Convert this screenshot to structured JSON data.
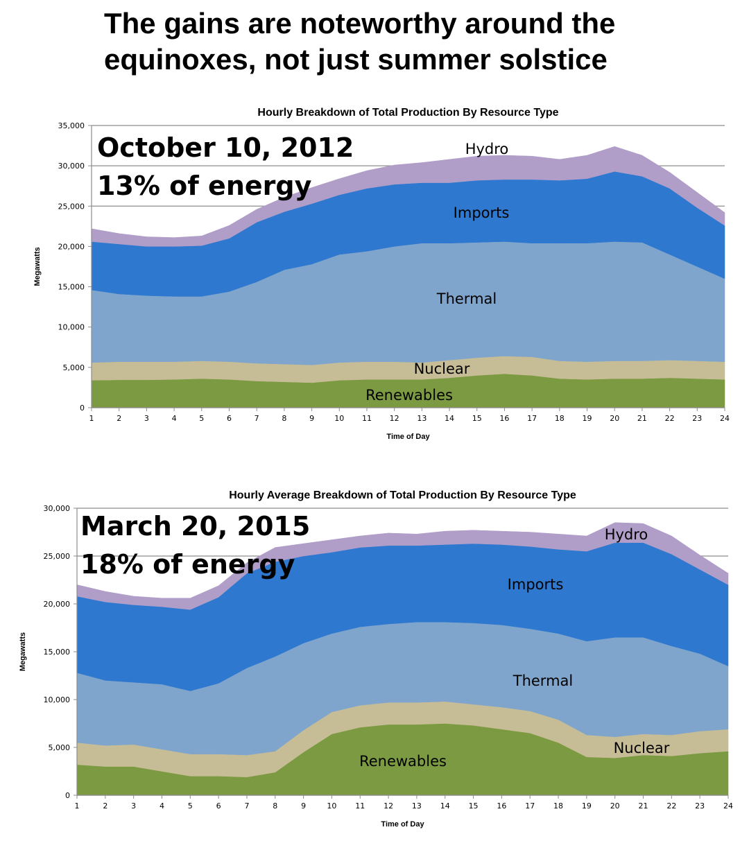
{
  "slide_title": {
    "line1": "The gains are noteworthy around the",
    "line2": "equinoxes, not just summer solstice"
  },
  "colors": {
    "Renewables": "#7b9a41",
    "Nuclear": "#c6bd96",
    "Thermal": "#80a5cc",
    "Imports": "#2e79cf",
    "Hydro": "#b09ec8"
  },
  "chart_data": [
    {
      "type": "area",
      "stacked": true,
      "title": "Hourly Breakdown of Total Production By Resource Type",
      "annotation": {
        "date": "October 10, 2012",
        "share": "13% of energy"
      },
      "xlabel": "Time of Day",
      "ylabel": "Megawatts",
      "ylim": [
        0,
        35000
      ],
      "yticks": [
        "0",
        "5,000",
        "10,000",
        "15,000",
        "20,000",
        "25,000",
        "30,000",
        "35,000"
      ],
      "x": [
        1,
        2,
        3,
        4,
        5,
        6,
        7,
        8,
        9,
        10,
        11,
        12,
        13,
        14,
        15,
        16,
        17,
        18,
        19,
        20,
        21,
        22,
        23,
        24
      ],
      "grid": true,
      "series": [
        {
          "name": "Renewables",
          "values": [
            3400,
            3450,
            3450,
            3500,
            3600,
            3500,
            3300,
            3200,
            3100,
            3400,
            3500,
            3500,
            3500,
            3700,
            4000,
            4200,
            4000,
            3600,
            3500,
            3600,
            3600,
            3700,
            3600,
            3500
          ]
        },
        {
          "name": "Nuclear",
          "values": [
            2200,
            2250,
            2250,
            2200,
            2200,
            2200,
            2200,
            2200,
            2200,
            2200,
            2200,
            2200,
            2100,
            2200,
            2200,
            2200,
            2300,
            2200,
            2200,
            2200,
            2200,
            2200,
            2200,
            2200
          ]
        },
        {
          "name": "Thermal",
          "values": [
            9000,
            8400,
            8200,
            8100,
            8000,
            8700,
            10100,
            11700,
            12500,
            13400,
            13700,
            14300,
            14800,
            14500,
            14300,
            14200,
            14100,
            14600,
            14700,
            14800,
            14700,
            13100,
            11700,
            10300
          ]
        },
        {
          "name": "Imports",
          "values": [
            6000,
            6200,
            6100,
            6200,
            6300,
            6600,
            7400,
            7200,
            7500,
            7400,
            7800,
            7700,
            7500,
            7500,
            7700,
            7700,
            7900,
            7800,
            8000,
            8700,
            8200,
            8200,
            7300,
            6600
          ]
        },
        {
          "name": "Hydro",
          "values": [
            1600,
            1300,
            1200,
            1100,
            1200,
            1600,
            1600,
            1800,
            2000,
            2000,
            2200,
            2400,
            2500,
            2900,
            3000,
            3000,
            2900,
            2600,
            2900,
            3100,
            2600,
            2000,
            1900,
            1600
          ]
        }
      ]
    },
    {
      "type": "area",
      "stacked": true,
      "title": "Hourly Average Breakdown of Total Production By Resource Type",
      "annotation": {
        "date": "March 20, 2015",
        "share": "18% of energy"
      },
      "xlabel": "Time of Day",
      "ylabel": "Megawatts",
      "ylim": [
        0,
        30000
      ],
      "yticks": [
        "0",
        "5,000",
        "10,000",
        "15,000",
        "20,000",
        "25,000",
        "30,000"
      ],
      "x": [
        1,
        2,
        3,
        4,
        5,
        6,
        7,
        8,
        9,
        10,
        11,
        12,
        13,
        14,
        15,
        16,
        17,
        18,
        19,
        20,
        21,
        22,
        23,
        24
      ],
      "grid": true,
      "series": [
        {
          "name": "Renewables",
          "values": [
            3200,
            3000,
            3000,
            2500,
            2000,
            2000,
            1900,
            2400,
            4500,
            6400,
            7100,
            7400,
            7400,
            7500,
            7300,
            6900,
            6500,
            5500,
            4000,
            3900,
            4200,
            4100,
            4400,
            4600
          ]
        },
        {
          "name": "Nuclear",
          "values": [
            2300,
            2200,
            2300,
            2300,
            2300,
            2300,
            2300,
            2200,
            2300,
            2300,
            2300,
            2300,
            2300,
            2300,
            2200,
            2300,
            2300,
            2400,
            2300,
            2200,
            2200,
            2200,
            2300,
            2300
          ]
        },
        {
          "name": "Thermal",
          "values": [
            7300,
            6800,
            6500,
            6800,
            6600,
            7400,
            9100,
            9900,
            9100,
            8200,
            8200,
            8200,
            8400,
            8300,
            8500,
            8600,
            8600,
            9000,
            9800,
            10400,
            10100,
            9300,
            8100,
            6600
          ]
        },
        {
          "name": "Imports",
          "values": [
            8000,
            8200,
            8100,
            8100,
            8500,
            9000,
            9900,
            9900,
            9100,
            8500,
            8300,
            8200,
            8000,
            8100,
            8300,
            8400,
            8600,
            8800,
            9400,
            9900,
            9900,
            9600,
            8800,
            8500
          ]
        },
        {
          "name": "Hydro",
          "values": [
            1200,
            1100,
            900,
            900,
            1200,
            1200,
            1100,
            1500,
            1300,
            1300,
            1200,
            1300,
            1200,
            1400,
            1400,
            1400,
            1500,
            1600,
            1600,
            2100,
            2000,
            1900,
            1500,
            1200
          ]
        }
      ]
    }
  ]
}
